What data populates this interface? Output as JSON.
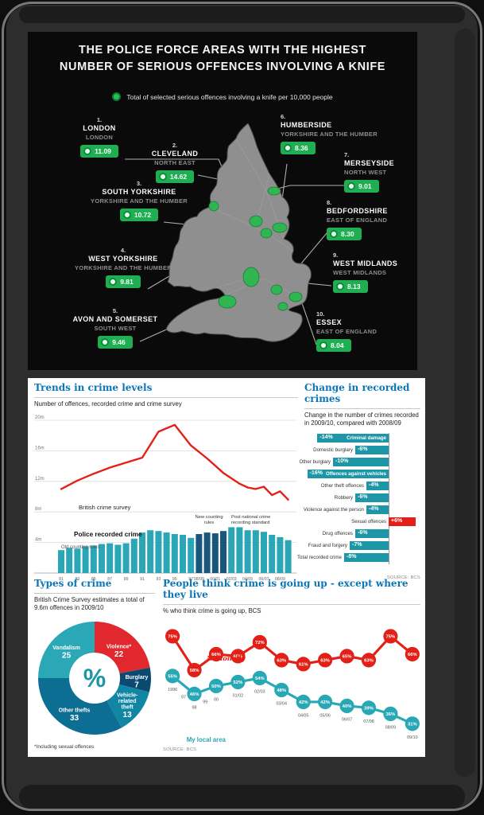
{
  "map_infographic": {
    "title_line1": "THE POLICE FORCE AREAS WITH THE HIGHEST",
    "title_line2": "NUMBER OF SERIOUS OFFENCES INVOLVING A KNIFE",
    "legend": "Total of selected serious offences involving a knife per 10,000 people",
    "badge_color": "#1fae52",
    "areas": [
      {
        "rank": "1.",
        "name": "LONDON",
        "region": "LONDON",
        "value": "11.09"
      },
      {
        "rank": "2.",
        "name": "CLEVELAND",
        "region": "NORTH EAST",
        "value": "14.62"
      },
      {
        "rank": "3.",
        "name": "SOUTH YORKSHIRE",
        "region": "YORKSHIRE AND THE HUMBER",
        "value": "10.72"
      },
      {
        "rank": "4.",
        "name": "WEST YORKSHIRE",
        "region": "YORKSHIRE AND THE HUMBER",
        "value": "9.81"
      },
      {
        "rank": "5.",
        "name": "AVON AND SOMERSET",
        "region": "SOUTH WEST",
        "value": "9.46"
      },
      {
        "rank": "6.",
        "name": "HUMBERSIDE",
        "region": "YORKSHIRE AND THE HUMBER",
        "value": "8.36"
      },
      {
        "rank": "7.",
        "name": "MERSEYSIDE",
        "region": "NORTH WEST",
        "value": "9.01"
      },
      {
        "rank": "8.",
        "name": "BEDFORDSHIRE",
        "region": "EAST OF ENGLAND",
        "value": "8.30"
      },
      {
        "rank": "9.",
        "name": "WEST MIDLANDS",
        "region": "WEST MIDLANDS",
        "value": "8.13"
      },
      {
        "rank": "10.",
        "name": "ESSEX",
        "region": "EAST OF ENGLAND",
        "value": "8.04"
      }
    ]
  },
  "chart_data": [
    {
      "type": "bar",
      "title": "Trends in crime levels",
      "subtitle": "Number of offences, recorded crime and crime survey",
      "ylim": [
        0,
        21
      ],
      "ytick_values": [
        20,
        16,
        12,
        8,
        4
      ],
      "ytick_labels": [
        "20m",
        "16m",
        "12m",
        "8m",
        "4m"
      ],
      "line": {
        "name": "British crime survey",
        "color": "#e32017",
        "x": [
          0,
          2,
          4,
          6,
          10,
          12,
          14,
          16,
          18,
          20,
          21,
          22,
          23,
          24,
          25,
          26,
          27,
          28
        ],
        "values": [
          11.0,
          12.1,
          13.0,
          13.8,
          15.1,
          18.5,
          19.4,
          16.7,
          15.0,
          13.1,
          12.4,
          11.7,
          11.2,
          11.0,
          11.3,
          10.2,
          10.7,
          9.6
        ]
      },
      "bars": {
        "name": "Police recorded crime",
        "color": "#2aa6b6",
        "dark_color": "#19567b",
        "values": [
          3.0,
          3.3,
          3.2,
          3.5,
          3.6,
          3.8,
          3.9,
          3.7,
          3.9,
          4.5,
          5.3,
          5.6,
          5.5,
          5.3,
          5.1,
          5.0,
          4.6,
          5.1,
          5.3,
          5.2,
          5.5,
          6.0,
          6.0,
          5.6,
          5.6,
          5.4,
          5.0,
          4.7,
          4.3
        ],
        "dark_indices": [
          17,
          18,
          19,
          20
        ]
      },
      "xticks": [
        {
          "i": 0,
          "label": "81"
        },
        {
          "i": 2,
          "label": "83"
        },
        {
          "i": 4,
          "label": "85"
        },
        {
          "i": 6,
          "label": "87"
        },
        {
          "i": 8,
          "label": "89"
        },
        {
          "i": 10,
          "label": "91"
        },
        {
          "i": 12,
          "label": "93"
        },
        {
          "i": 14,
          "label": "95"
        },
        {
          "i": 16,
          "label": "97"
        },
        {
          "i": 17,
          "label": "98/99"
        },
        {
          "i": 19,
          "label": "00/01"
        },
        {
          "i": 21,
          "label": "02/03"
        },
        {
          "i": 23,
          "label": "04/05"
        },
        {
          "i": 25,
          "label": "06/07"
        },
        {
          "i": 27,
          "label": "08/09"
        }
      ],
      "annotations": {
        "old_rules": "Old counting rules",
        "new_rules": "New counting rules",
        "post_standard": "Post national crime recording standard"
      }
    },
    {
      "type": "bar",
      "title": "Change in recorded crimes",
      "subtitle": "Change in the number of crimes recorded in 2009/10, compared with 2008/09",
      "categories": [
        "Criminal damage",
        "Domestic burglary",
        "Other burglary",
        "Offences against vehicles",
        "Other theft offences",
        "Robbery",
        "Violence against the person",
        "Sexual offences",
        "Drug offences",
        "Fraud and forgery",
        "Total recorded crime"
      ],
      "values": [
        -14,
        -6,
        -10,
        -16,
        -4,
        -6,
        -4,
        6,
        -6,
        -7,
        -8
      ],
      "value_labels": [
        "-14%",
        "-6%",
        "-10%",
        "-16%",
        "-4%",
        "-6%",
        "-4%",
        "+6%",
        "-6%",
        "-7%",
        "-8%"
      ],
      "label_inside": [
        true,
        false,
        false,
        true,
        false,
        false,
        false,
        false,
        false,
        false,
        false
      ],
      "negative_color": "#1d97a8",
      "positive_color": "#e32017",
      "source": "SOURCE: BCS"
    },
    {
      "type": "pie",
      "title": "Types of crime",
      "subtitle": "British Crime Survey estimates a total of 9.6m offences in 2009/10",
      "center_label": "%",
      "footnote": "*Including sexual offences",
      "slices": [
        {
          "label": "Violence*",
          "label_lines": [
            "Violence*"
          ],
          "value": 22,
          "color": "#e0282e"
        },
        {
          "label": "Burglary",
          "label_lines": [
            "Burglary"
          ],
          "value": 7,
          "color": "#0b4a70"
        },
        {
          "label": "Vehicle-related theft",
          "label_lines": [
            "Vehicle-",
            "related",
            "theft"
          ],
          "value": 13,
          "color": "#1186a4"
        },
        {
          "label": "Other thefts",
          "label_lines": [
            "Other thefts"
          ],
          "value": 33,
          "color": "#0d6e94"
        },
        {
          "label": "Vandalism",
          "label_lines": [
            "Vandalism"
          ],
          "value": 25,
          "color": "#2ba8b6"
        }
      ]
    },
    {
      "type": "line",
      "title": "People think crime is going up - except where they live",
      "subtitle": "% who think crime is going up, BCS",
      "x_axis_labels": [
        "1996",
        "97",
        "98",
        "99",
        "00",
        "01/02",
        "02/03",
        "03/04",
        "04/05",
        "05/06",
        "06/07",
        "07/08",
        "08/09",
        "09/10"
      ],
      "point_labels": [
        "1996",
        "98",
        "00",
        "01/02",
        "02/03",
        "03/04",
        "04/05",
        "05/06",
        "06/07",
        "07/08",
        "08/09",
        "09/10"
      ],
      "series": [
        {
          "name": "Nationally",
          "color": "#e32017",
          "values": [
            75,
            58,
            66,
            65,
            72,
            63,
            61,
            63,
            65,
            63,
            75,
            66
          ]
        },
        {
          "name": "My local area",
          "color": "#28a7b5",
          "values": [
            55,
            46,
            50,
            52,
            54,
            48,
            42,
            42,
            40,
            39,
            36,
            31
          ]
        }
      ],
      "ylim": [
        25,
        80
      ],
      "source": "SOURCE: BCS"
    }
  ]
}
